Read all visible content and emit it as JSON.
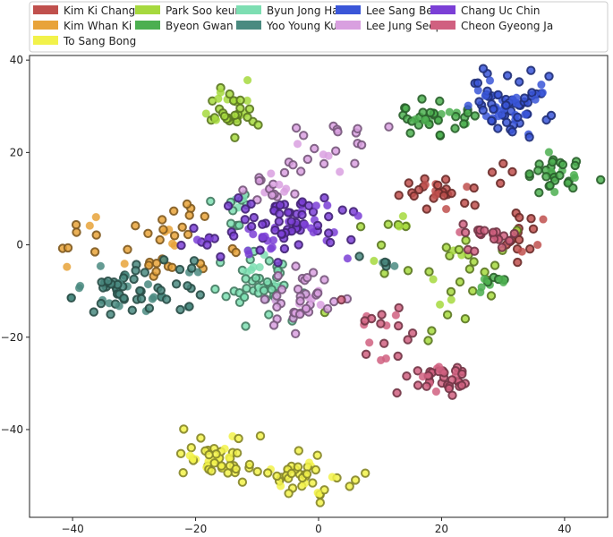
{
  "chart_data": {
    "type": "scatter",
    "title": "",
    "xlabel": "",
    "ylabel": "",
    "xlim": [
      -47,
      47
    ],
    "ylim": [
      -59,
      41
    ],
    "x_ticks": [
      -40,
      -20,
      0,
      20,
      40
    ],
    "y_ticks": [
      -40,
      -20,
      0,
      20,
      40
    ],
    "x_tick_labels": [
      "−40",
      "−20",
      "0",
      "20",
      "40"
    ],
    "y_tick_labels": [
      "−40",
      "−20",
      "0",
      "20",
      "40"
    ],
    "legend_position": "top",
    "series": [
      {
        "name": "Kim Ki Chang",
        "color": "#c0504d",
        "clusters": [
          [
            18,
            12,
            3,
            3,
            20
          ],
          [
            33,
            2,
            3,
            3,
            18
          ],
          [
            24,
            14,
            5,
            3,
            10
          ]
        ]
      },
      {
        "name": "Kim Whan Ki",
        "color": "#e8a33a",
        "clusters": [
          [
            -24,
            -2,
            5,
            7,
            30
          ],
          [
            -38,
            3,
            4,
            4,
            10
          ]
        ]
      },
      {
        "name": "To Sang Bong",
        "color": "#f2f24a",
        "clusters": [
          [
            -17,
            -46,
            4,
            3,
            40
          ],
          [
            -3,
            -50,
            5,
            3,
            45
          ]
        ]
      },
      {
        "name": "Park Soo keun",
        "color": "#a6d93e",
        "clusters": [
          [
            -14,
            29,
            3,
            3,
            35
          ],
          [
            20,
            -6,
            7,
            7,
            30
          ],
          [
            12,
            4,
            3,
            3,
            8
          ]
        ]
      },
      {
        "name": "Byeon Gwan Sik",
        "color": "#4caf50",
        "clusters": [
          [
            18,
            27,
            4,
            3,
            35
          ],
          [
            38,
            15,
            3,
            3,
            30
          ],
          [
            28,
            -8,
            2,
            1,
            10
          ]
        ]
      },
      {
        "name": "Byun Jong Ha",
        "color": "#7ddeb2",
        "clusters": [
          [
            -10,
            -8,
            4,
            4,
            50
          ],
          [
            -13,
            7,
            2,
            3,
            12
          ]
        ]
      },
      {
        "name": "Yoo Young Kuk",
        "color": "#4a8a80",
        "clusters": [
          [
            -32,
            -10,
            5,
            3,
            55
          ],
          [
            -22,
            -8,
            2,
            3,
            12
          ],
          [
            10,
            -4,
            2,
            1,
            6
          ]
        ]
      },
      {
        "name": "Lee Sang Beom",
        "color": "#3a56d8",
        "clusters": [
          [
            31,
            30,
            4,
            4,
            75
          ]
        ]
      },
      {
        "name": "Lee Jung Seop",
        "color": "#d9a0e0",
        "clusters": [
          [
            -3,
            -12,
            4,
            4,
            40
          ],
          [
            2,
            22,
            5,
            4,
            20
          ],
          [
            -8,
            13,
            3,
            3,
            20
          ]
        ]
      },
      {
        "name": "Chang Uc Chin",
        "color": "#7b3fd6",
        "clusters": [
          [
            -5,
            4,
            6,
            4,
            80
          ],
          [
            -18,
            1,
            3,
            2,
            10
          ]
        ]
      },
      {
        "name": "Cheon Gyeong Ja",
        "color": "#d06080",
        "clusters": [
          [
            20,
            -29,
            3,
            2,
            35
          ],
          [
            10,
            -20,
            3,
            6,
            20
          ],
          [
            28,
            2,
            3,
            2,
            20
          ]
        ]
      }
    ],
    "legend": [
      "Kim Ki Chang",
      "Kim Whan Ki",
      "To Sang Bong",
      "Park Soo keun",
      "Byeon Gwan Sik",
      "Byun Jong Ha",
      "Yoo Young Kuk",
      "Lee Sang Beom",
      "Lee Jung Seop",
      "Chang Uc Chin",
      "Cheon Gyeong Ja"
    ]
  }
}
